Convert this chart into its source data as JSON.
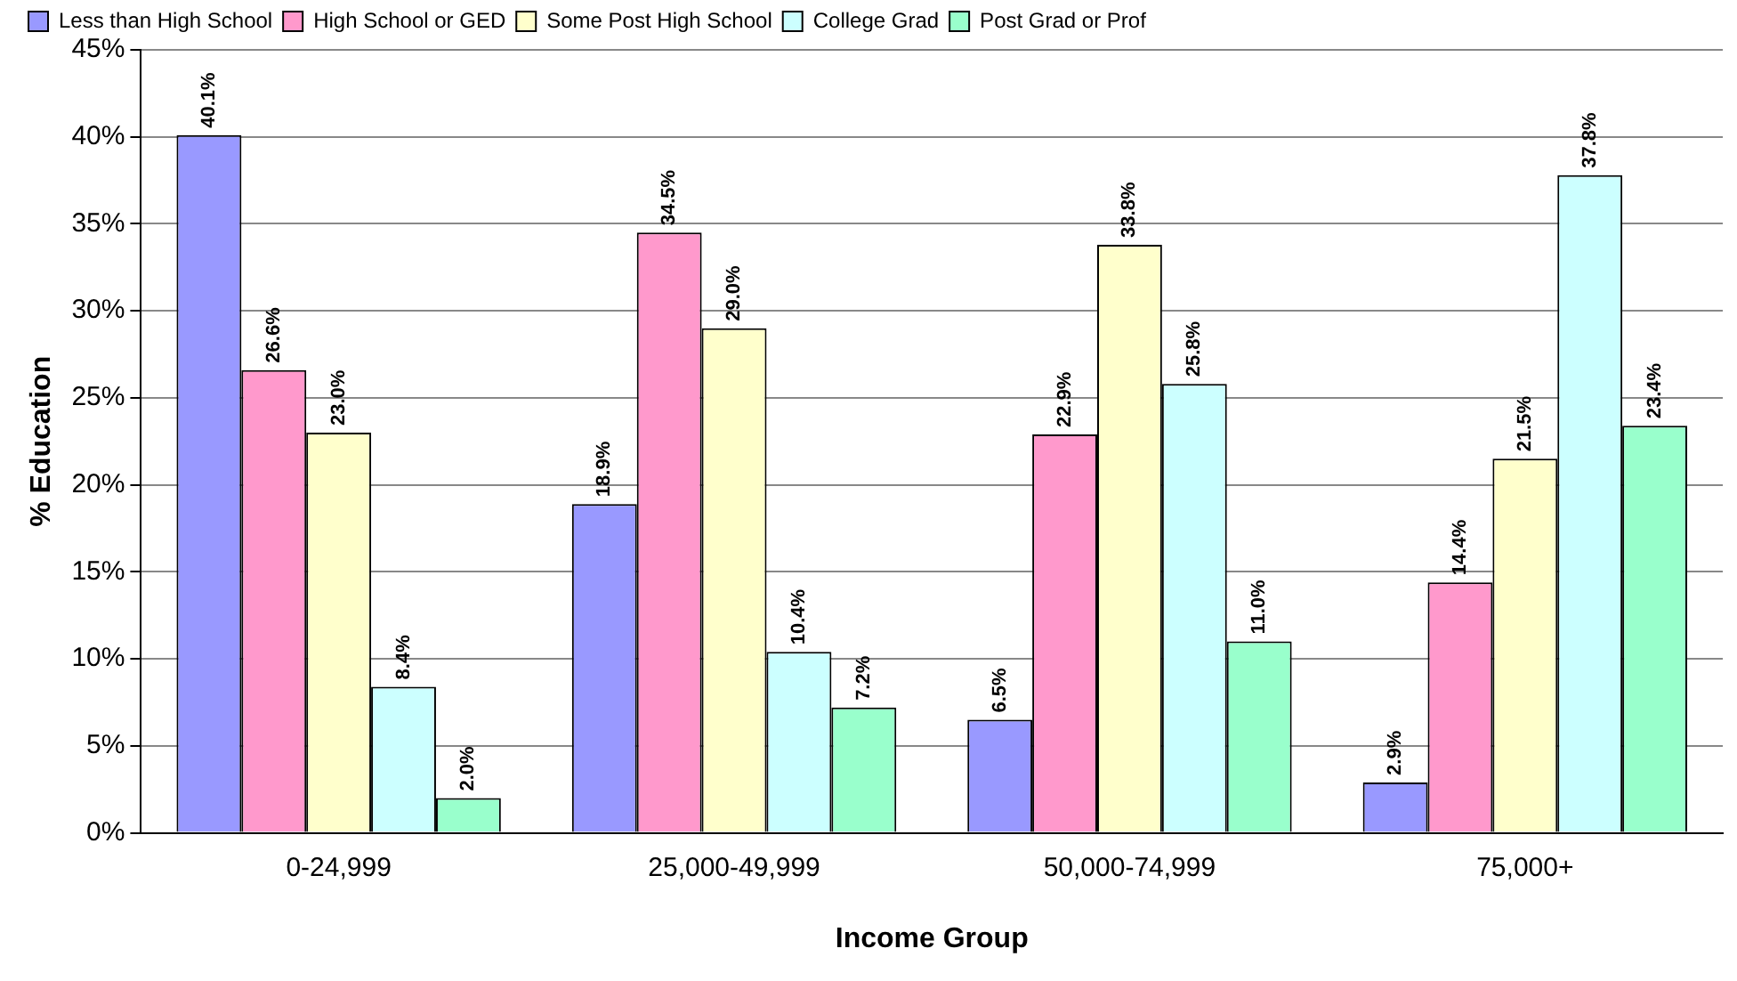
{
  "chart_data": {
    "type": "bar",
    "xlabel": "Income Group",
    "ylabel": "% Education",
    "categories": [
      "0-24,999",
      "25,000-49,999",
      "50,000-74,999",
      "75,000+"
    ],
    "series": [
      {
        "name": "Less than High School",
        "color": "#9999ff",
        "values": [
          40.1,
          18.9,
          6.5,
          2.9
        ],
        "value_labels": [
          "40.1%",
          "18.9%",
          "6.5%",
          "2.9%"
        ]
      },
      {
        "name": "High School or GED",
        "color": "#ff99cc",
        "values": [
          26.6,
          34.5,
          22.9,
          14.4
        ],
        "value_labels": [
          "26.6%",
          "34.5%",
          "22.9%",
          "14.4%"
        ]
      },
      {
        "name": "Some Post High School",
        "color": "#ffffcc",
        "values": [
          23.0,
          29.0,
          33.8,
          21.5
        ],
        "value_labels": [
          "23.0%",
          "29.0%",
          "33.8%",
          "21.5%"
        ]
      },
      {
        "name": "College Grad",
        "color": "#ccffff",
        "values": [
          8.4,
          10.4,
          25.8,
          37.8
        ],
        "value_labels": [
          "8.4%",
          "10.4%",
          "25.8%",
          "37.8%"
        ]
      },
      {
        "name": "Post Grad or Prof",
        "color": "#99ffcc",
        "values": [
          2.0,
          7.2,
          11.0,
          23.4
        ],
        "value_labels": [
          "2.0%",
          "7.2%",
          "11.0%",
          "23.4%"
        ]
      }
    ],
    "ylim": [
      0,
      45
    ],
    "yticks": [
      {
        "value": 0,
        "label": "0%"
      },
      {
        "value": 5,
        "label": "5%"
      },
      {
        "value": 10,
        "label": "10%"
      },
      {
        "value": 15,
        "label": "15%"
      },
      {
        "value": 20,
        "label": "20%"
      },
      {
        "value": 25,
        "label": "25%"
      },
      {
        "value": 30,
        "label": "30%"
      },
      {
        "value": 35,
        "label": "35%"
      },
      {
        "value": 40,
        "label": "40%"
      },
      {
        "value": 45,
        "label": "45%"
      }
    ],
    "grid": "y",
    "legend": "top left"
  }
}
